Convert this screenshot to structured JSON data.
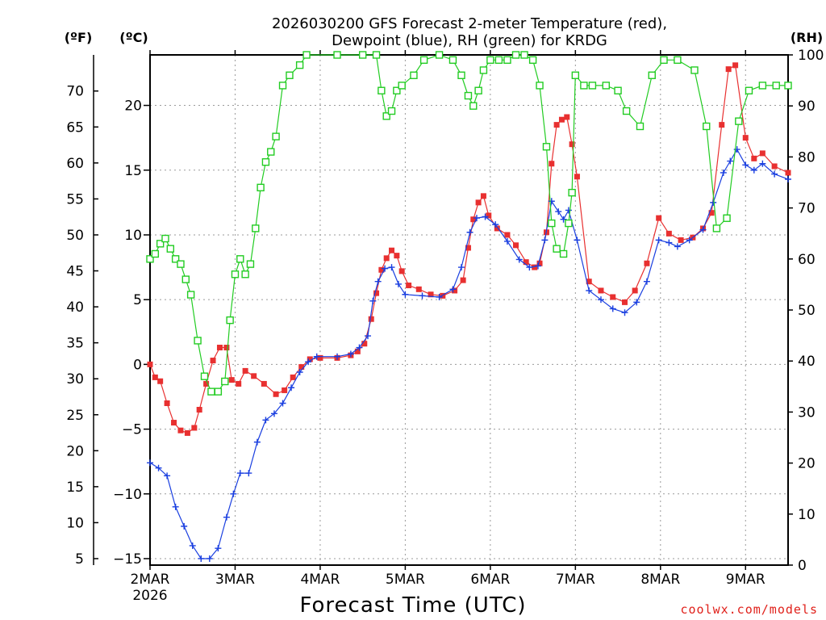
{
  "chart_data": {
    "type": "line",
    "title_line1": "2026030200 GFS Forecast 2-meter Temperature (red),",
    "title_line2": "Dewpoint (blue), RH (green) for KRDG",
    "xlabel": "Forecast Time (UTC)",
    "left_unit_f": "(ºF)",
    "left_unit_c": "(ºC)",
    "right_unit": "(RH)",
    "x_range_days": [
      0,
      7.5
    ],
    "c_range": [
      -15.5,
      23.9
    ],
    "rh_range": [
      0,
      100
    ],
    "x_ticks": [
      "2MAR",
      "3MAR",
      "4MAR",
      "5MAR",
      "6MAR",
      "7MAR",
      "8MAR",
      "9MAR"
    ],
    "x_year": "2026",
    "c_ticks": [
      "20",
      "15",
      "10",
      "5",
      "0",
      "−5",
      "−10",
      "−15"
    ],
    "f_ticks": [
      "70",
      "65",
      "60",
      "55",
      "50",
      "45",
      "40",
      "35",
      "30",
      "25",
      "20",
      "15",
      "10",
      "5"
    ],
    "rh_ticks": [
      "100",
      "90",
      "80",
      "70",
      "60",
      "50",
      "40",
      "30",
      "20",
      "10",
      "0"
    ],
    "credit": "coolwx.com/models",
    "series": [
      {
        "name": "Temperature",
        "color": "#e83030",
        "marker": "filled-square",
        "points": [
          [
            0,
            0
          ],
          [
            0.06,
            -1
          ],
          [
            0.12,
            -1.3
          ],
          [
            0.2,
            -3
          ],
          [
            0.28,
            -4.5
          ],
          [
            0.36,
            -5.1
          ],
          [
            0.44,
            -5.3
          ],
          [
            0.52,
            -4.9
          ],
          [
            0.58,
            -3.5
          ],
          [
            0.66,
            -1.5
          ],
          [
            0.74,
            0.3
          ],
          [
            0.82,
            1.3
          ],
          [
            0.9,
            1.3
          ],
          [
            0.96,
            -1.2
          ],
          [
            1.04,
            -1.5
          ],
          [
            1.12,
            -0.5
          ],
          [
            1.22,
            -0.9
          ],
          [
            1.34,
            -1.5
          ],
          [
            1.48,
            -2.3
          ],
          [
            1.58,
            -2
          ],
          [
            1.68,
            -1
          ],
          [
            1.78,
            -0.2
          ],
          [
            1.88,
            0.4
          ],
          [
            2.0,
            0.5
          ],
          [
            2.2,
            0.5
          ],
          [
            2.36,
            0.7
          ],
          [
            2.44,
            1.0
          ],
          [
            2.52,
            1.6
          ],
          [
            2.6,
            3.5
          ],
          [
            2.66,
            5.5
          ],
          [
            2.72,
            7.3
          ],
          [
            2.78,
            8.2
          ],
          [
            2.84,
            8.8
          ],
          [
            2.9,
            8.4
          ],
          [
            2.96,
            7.2
          ],
          [
            3.04,
            6.1
          ],
          [
            3.16,
            5.8
          ],
          [
            3.3,
            5.4
          ],
          [
            3.44,
            5.3
          ],
          [
            3.58,
            5.7
          ],
          [
            3.68,
            6.5
          ],
          [
            3.74,
            9.0
          ],
          [
            3.8,
            11.2
          ],
          [
            3.86,
            12.5
          ],
          [
            3.92,
            13.0
          ],
          [
            3.98,
            11.5
          ],
          [
            4.08,
            10.5
          ],
          [
            4.2,
            10
          ],
          [
            4.3,
            9.2
          ],
          [
            4.42,
            7.9
          ],
          [
            4.52,
            7.5
          ],
          [
            4.58,
            7.8
          ],
          [
            4.66,
            10.2
          ],
          [
            4.72,
            15.5
          ],
          [
            4.78,
            18.5
          ],
          [
            4.84,
            18.9
          ],
          [
            4.9,
            19.1
          ],
          [
            4.96,
            17
          ],
          [
            5.02,
            14.5
          ],
          [
            5.16,
            6.4
          ],
          [
            5.3,
            5.7
          ],
          [
            5.44,
            5.2
          ],
          [
            5.58,
            4.8
          ],
          [
            5.7,
            5.7
          ],
          [
            5.84,
            7.8
          ],
          [
            5.98,
            11.3
          ],
          [
            6.1,
            10.1
          ],
          [
            6.24,
            9.6
          ],
          [
            6.38,
            9.8
          ],
          [
            6.5,
            10.5
          ],
          [
            6.6,
            11.7
          ],
          [
            6.72,
            18.5
          ],
          [
            6.8,
            22.8
          ],
          [
            6.88,
            23.1
          ],
          [
            7.0,
            17.5
          ],
          [
            7.1,
            15.9
          ],
          [
            7.2,
            16.3
          ],
          [
            7.34,
            15.3
          ],
          [
            7.5,
            14.8
          ]
        ]
      },
      {
        "name": "Dewpoint",
        "color": "#1a3fe0",
        "marker": "plus",
        "points": [
          [
            0,
            -7.6
          ],
          [
            0.1,
            -8
          ],
          [
            0.2,
            -8.6
          ],
          [
            0.3,
            -11
          ],
          [
            0.4,
            -12.5
          ],
          [
            0.5,
            -14
          ],
          [
            0.6,
            -15
          ],
          [
            0.7,
            -15
          ],
          [
            0.8,
            -14.2
          ],
          [
            0.9,
            -11.8
          ],
          [
            0.98,
            -10
          ],
          [
            1.06,
            -8.4
          ],
          [
            1.16,
            -8.4
          ],
          [
            1.26,
            -6
          ],
          [
            1.36,
            -4.3
          ],
          [
            1.46,
            -3.8
          ],
          [
            1.56,
            -3
          ],
          [
            1.66,
            -1.8
          ],
          [
            1.76,
            -0.6
          ],
          [
            1.86,
            0.2
          ],
          [
            1.96,
            0.6
          ],
          [
            2.2,
            0.6
          ],
          [
            2.36,
            0.8
          ],
          [
            2.46,
            1.3
          ],
          [
            2.56,
            2.2
          ],
          [
            2.62,
            4.9
          ],
          [
            2.68,
            6.4
          ],
          [
            2.76,
            7.4
          ],
          [
            2.84,
            7.5
          ],
          [
            2.92,
            6.2
          ],
          [
            3.0,
            5.4
          ],
          [
            3.2,
            5.3
          ],
          [
            3.4,
            5.2
          ],
          [
            3.56,
            5.8
          ],
          [
            3.66,
            7.5
          ],
          [
            3.76,
            10.2
          ],
          [
            3.84,
            11.3
          ],
          [
            3.94,
            11.4
          ],
          [
            4.06,
            10.8
          ],
          [
            4.2,
            9.5
          ],
          [
            4.34,
            8.1
          ],
          [
            4.46,
            7.5
          ],
          [
            4.56,
            7.6
          ],
          [
            4.64,
            9.6
          ],
          [
            4.72,
            12.6
          ],
          [
            4.8,
            11.8
          ],
          [
            4.86,
            11.2
          ],
          [
            4.92,
            11.9
          ],
          [
            5.02,
            9.6
          ],
          [
            5.16,
            5.7
          ],
          [
            5.3,
            5.0
          ],
          [
            5.44,
            4.3
          ],
          [
            5.58,
            4.0
          ],
          [
            5.72,
            4.8
          ],
          [
            5.84,
            6.4
          ],
          [
            5.98,
            9.6
          ],
          [
            6.1,
            9.4
          ],
          [
            6.2,
            9.1
          ],
          [
            6.34,
            9.6
          ],
          [
            6.5,
            10.4
          ],
          [
            6.62,
            12.5
          ],
          [
            6.74,
            14.8
          ],
          [
            6.82,
            15.7
          ],
          [
            6.9,
            16.6
          ],
          [
            7.0,
            15.4
          ],
          [
            7.1,
            15.0
          ],
          [
            7.2,
            15.5
          ],
          [
            7.34,
            14.7
          ],
          [
            7.5,
            14.3
          ]
        ]
      },
      {
        "name": "RH",
        "color": "#22cc22",
        "marker": "open-square",
        "points": [
          [
            0,
            60
          ],
          [
            0.06,
            61
          ],
          [
            0.12,
            63
          ],
          [
            0.18,
            64
          ],
          [
            0.24,
            62
          ],
          [
            0.3,
            60
          ],
          [
            0.36,
            59
          ],
          [
            0.42,
            56
          ],
          [
            0.48,
            53
          ],
          [
            0.56,
            44
          ],
          [
            0.64,
            37
          ],
          [
            0.72,
            34
          ],
          [
            0.8,
            34
          ],
          [
            0.88,
            36
          ],
          [
            0.94,
            48
          ],
          [
            1.0,
            57
          ],
          [
            1.06,
            60
          ],
          [
            1.12,
            57
          ],
          [
            1.18,
            59
          ],
          [
            1.24,
            66
          ],
          [
            1.3,
            74
          ],
          [
            1.36,
            79
          ],
          [
            1.42,
            81
          ],
          [
            1.48,
            84
          ],
          [
            1.56,
            94
          ],
          [
            1.64,
            96
          ],
          [
            1.76,
            98
          ],
          [
            1.84,
            100
          ],
          [
            2.2,
            100
          ],
          [
            2.5,
            100
          ],
          [
            2.66,
            100
          ],
          [
            2.72,
            93
          ],
          [
            2.78,
            88
          ],
          [
            2.84,
            89
          ],
          [
            2.9,
            93
          ],
          [
            2.96,
            94
          ],
          [
            3.1,
            96
          ],
          [
            3.22,
            99
          ],
          [
            3.4,
            100
          ],
          [
            3.56,
            99
          ],
          [
            3.66,
            96
          ],
          [
            3.74,
            92
          ],
          [
            3.8,
            90
          ],
          [
            3.86,
            93
          ],
          [
            3.92,
            97
          ],
          [
            4.0,
            99
          ],
          [
            4.1,
            99
          ],
          [
            4.2,
            99
          ],
          [
            4.3,
            100
          ],
          [
            4.4,
            100
          ],
          [
            4.5,
            99
          ],
          [
            4.58,
            94
          ],
          [
            4.66,
            82
          ],
          [
            4.72,
            67
          ],
          [
            4.78,
            62
          ],
          [
            4.86,
            61
          ],
          [
            4.92,
            67
          ],
          [
            4.96,
            73
          ],
          [
            5.0,
            96
          ],
          [
            5.1,
            94
          ],
          [
            5.2,
            94
          ],
          [
            5.36,
            94
          ],
          [
            5.5,
            93
          ],
          [
            5.6,
            89
          ],
          [
            5.76,
            86
          ],
          [
            5.9,
            96
          ],
          [
            6.04,
            99
          ],
          [
            6.2,
            99
          ],
          [
            6.4,
            97
          ],
          [
            6.54,
            86
          ],
          [
            6.66,
            66
          ],
          [
            6.78,
            68
          ],
          [
            6.92,
            87
          ],
          [
            7.04,
            93
          ],
          [
            7.2,
            94
          ],
          [
            7.36,
            94
          ],
          [
            7.5,
            94
          ]
        ]
      }
    ]
  }
}
